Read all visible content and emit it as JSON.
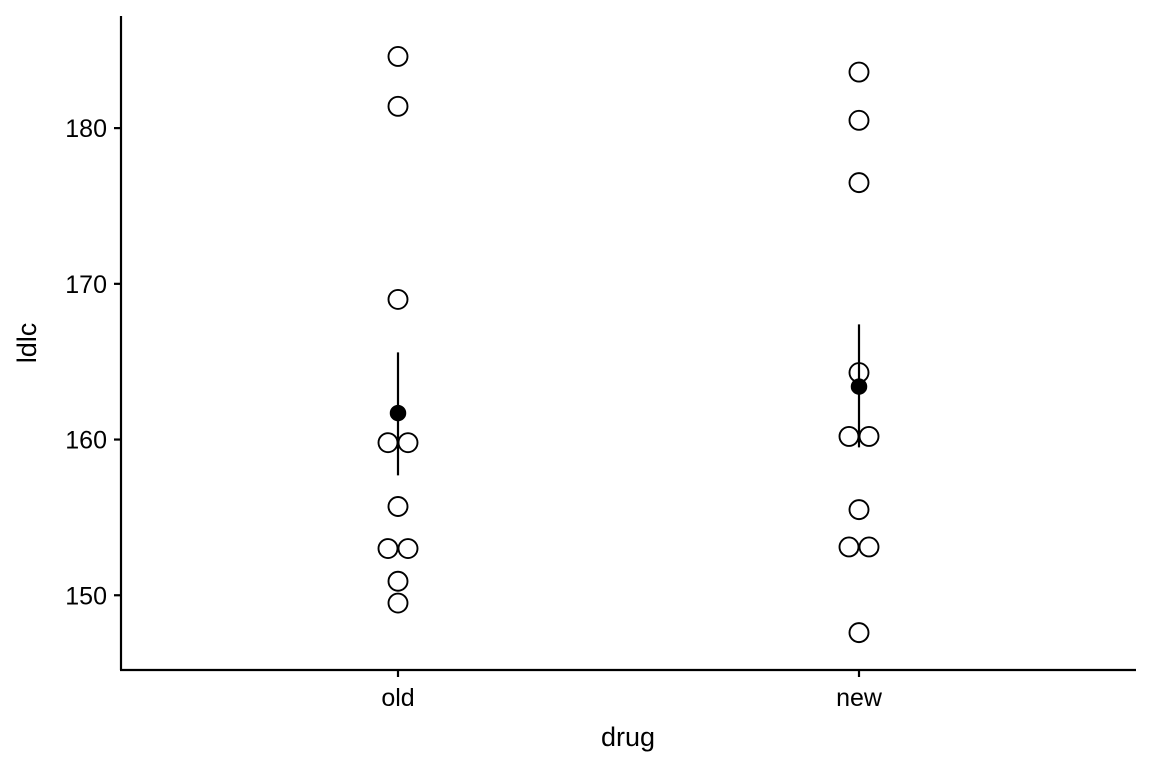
{
  "chart_data": {
    "type": "scatter",
    "title": "",
    "xlabel": "drug",
    "ylabel": "ldlc",
    "categories": [
      "old",
      "new"
    ],
    "ylim": [
      145.2,
      187.2
    ],
    "yticks": [
      150,
      160,
      170,
      180
    ],
    "grid": false,
    "groups": [
      {
        "category": "old",
        "values": [
          184.6,
          181.4,
          169.0,
          159.8,
          159.8,
          155.7,
          153.0,
          153.0,
          150.9,
          149.5
        ],
        "mean": 161.7,
        "error_low": 157.7,
        "error_high": 165.6
      },
      {
        "category": "new",
        "values": [
          183.6,
          180.5,
          176.5,
          164.3,
          160.2,
          160.2,
          155.5,
          153.1,
          153.1,
          147.6
        ],
        "mean": 163.4,
        "error_low": 159.5,
        "error_high": 167.4
      }
    ]
  }
}
